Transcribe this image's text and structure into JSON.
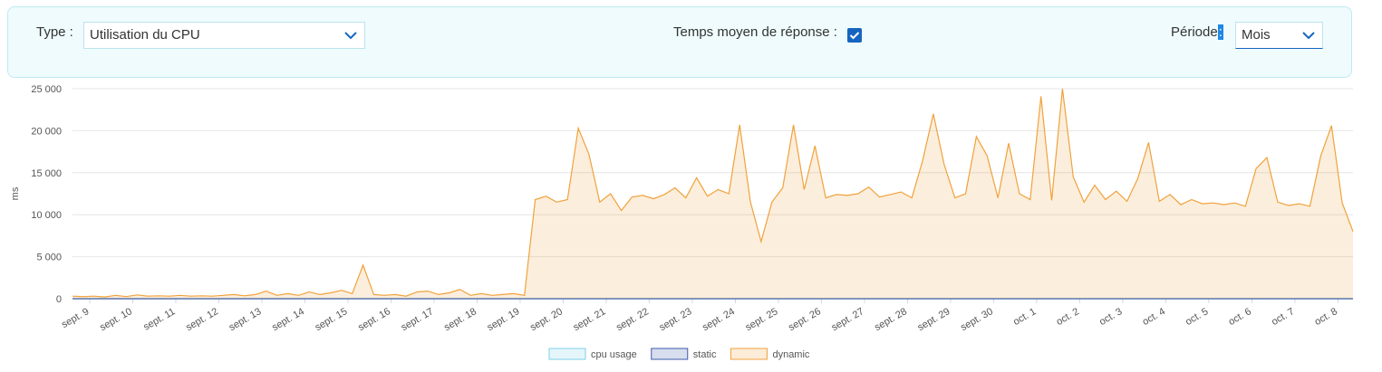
{
  "controls": {
    "type_label": "Type :",
    "type_value": "Utilisation du CPU",
    "response_label": "Temps moyen de réponse :",
    "period_label": "Période",
    "period_colon": ":",
    "period_value": "Mois"
  },
  "chart_data": {
    "type": "area",
    "ylabel": "ms",
    "ylim": [
      0,
      25000
    ],
    "yticks": [
      0,
      {
        "value": 5000,
        "label": "5 000"
      },
      {
        "value": 10000,
        "label": "10 000"
      },
      {
        "value": 15000,
        "label": "15 000"
      },
      {
        "value": 20000,
        "label": "20 000"
      },
      {
        "value": 25000,
        "label": "25 000"
      }
    ],
    "xlim": [
      -0.4,
      29.35
    ],
    "xticks": [
      {
        "value": 0,
        "label": "sept. 9"
      },
      {
        "value": 1,
        "label": "sept. 10"
      },
      {
        "value": 2,
        "label": "sept. 11"
      },
      {
        "value": 3,
        "label": "sept. 12"
      },
      {
        "value": 4,
        "label": "sept. 13"
      },
      {
        "value": 5,
        "label": "sept. 14"
      },
      {
        "value": 6,
        "label": "sept. 15"
      },
      {
        "value": 7,
        "label": "sept. 16"
      },
      {
        "value": 8,
        "label": "sept. 17"
      },
      {
        "value": 9,
        "label": "sept. 18"
      },
      {
        "value": 10,
        "label": "sept. 19"
      },
      {
        "value": 11,
        "label": "sept. 20"
      },
      {
        "value": 12,
        "label": "sept. 21"
      },
      {
        "value": 13,
        "label": "sept. 22"
      },
      {
        "value": 14,
        "label": "sept. 23"
      },
      {
        "value": 15,
        "label": "sept. 24"
      },
      {
        "value": 16,
        "label": "sept. 25"
      },
      {
        "value": 17,
        "label": "sept. 26"
      },
      {
        "value": 18,
        "label": "sept. 27"
      },
      {
        "value": 19,
        "label": "sept. 28"
      },
      {
        "value": 20,
        "label": "sept. 29"
      },
      {
        "value": 21,
        "label": "sept. 30"
      },
      {
        "value": 22,
        "label": "oct. 1"
      },
      {
        "value": 23,
        "label": "oct. 2"
      },
      {
        "value": 24,
        "label": "oct. 3"
      },
      {
        "value": 25,
        "label": "oct. 4"
      },
      {
        "value": 26,
        "label": "oct. 5"
      },
      {
        "value": 27,
        "label": "oct. 6"
      },
      {
        "value": 28,
        "label": "oct. 7"
      },
      {
        "value": 29,
        "label": "oct. 8"
      }
    ],
    "grid": true,
    "series": [
      {
        "name": "cpu usage",
        "color": "#7cd0ea",
        "x": [
          -0.4,
          29.35
        ],
        "values": [
          0,
          0
        ]
      },
      {
        "name": "static",
        "color": "#3b5ba9",
        "x": [
          -0.4,
          29.35
        ],
        "values": [
          0,
          0
        ]
      },
      {
        "name": "dynamic",
        "color": "#f0a23c",
        "x": [
          -0.4,
          -0.15,
          0.1,
          0.35,
          0.6,
          0.85,
          1.1,
          1.35,
          1.6,
          1.85,
          2.1,
          2.35,
          2.6,
          2.85,
          3.1,
          3.35,
          3.6,
          3.85,
          4.1,
          4.35,
          4.6,
          4.85,
          5.1,
          5.35,
          5.6,
          5.85,
          6.1,
          6.35,
          6.6,
          6.85,
          7.1,
          7.35,
          7.6,
          7.85,
          8.1,
          8.35,
          8.6,
          8.85,
          9.1,
          9.35,
          9.6,
          9.85,
          10.1,
          10.35,
          10.6,
          10.85,
          11.1,
          11.35,
          11.6,
          11.85,
          12.1,
          12.35,
          12.6,
          12.85,
          13.1,
          13.35,
          13.6,
          13.85,
          14.1,
          14.35,
          14.6,
          14.85,
          15.1,
          15.35,
          15.6,
          15.85,
          16.1,
          16.35,
          16.6,
          16.85,
          17.1,
          17.35,
          17.6,
          17.85,
          18.1,
          18.35,
          18.6,
          18.85,
          19.1,
          19.35,
          19.6,
          19.85,
          20.1,
          20.35,
          20.6,
          20.85,
          21.1,
          21.35,
          21.6,
          21.85,
          22.1,
          22.35,
          22.6,
          22.85,
          23.1,
          23.35,
          23.6,
          23.85,
          24.1,
          24.35,
          24.6,
          24.85,
          25.1,
          25.35,
          25.6,
          25.85,
          26.1,
          26.35,
          26.6,
          26.85,
          27.1,
          27.35,
          27.6,
          27.85,
          28.1,
          28.35,
          28.6,
          28.85,
          29.1,
          29.35
        ],
        "values": [
          300,
          250,
          300,
          200,
          400,
          250,
          450,
          300,
          350,
          300,
          400,
          300,
          350,
          300,
          400,
          500,
          350,
          500,
          900,
          400,
          600,
          400,
          800,
          500,
          700,
          1000,
          600,
          4000,
          500,
          400,
          500,
          300,
          800,
          900,
          500,
          700,
          1100,
          400,
          600,
          400,
          500,
          600,
          400,
          11800,
          12200,
          11500,
          11800,
          20300,
          17200,
          11500,
          12500,
          10500,
          12100,
          12300,
          11900,
          12400,
          13200,
          12000,
          14400,
          12200,
          13000,
          12500,
          20700,
          11500,
          6800,
          11500,
          13200,
          20700,
          13000,
          18200,
          12000,
          12400,
          12300,
          12500,
          13300,
          12100,
          12400,
          12700,
          12000,
          16400,
          22000,
          16000,
          12000,
          12500,
          19300,
          17000,
          12000,
          18500,
          12500,
          11800,
          24100,
          11700,
          25000,
          14500,
          11500,
          13500,
          11800,
          12800,
          11600,
          14300,
          18600,
          11600,
          12400,
          11200,
          11800,
          11300,
          11400,
          11200,
          11400,
          11000,
          15500,
          16800,
          11500,
          11100,
          11300,
          11000,
          17000,
          20600,
          11400,
          8000
        ]
      }
    ]
  }
}
